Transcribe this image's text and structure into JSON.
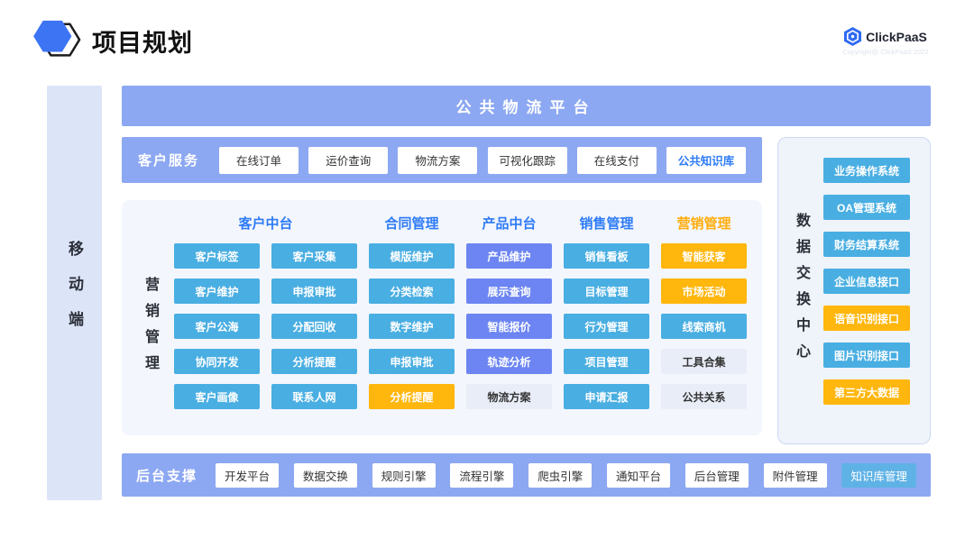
{
  "header": {
    "title": "项目规划",
    "brand": "ClickPaaS",
    "copyright": "Copyright@ ClickPaaS 2022"
  },
  "colors": {
    "bar_blue": "#8da8f2",
    "button_sky": "#49aee2",
    "button_indigo": "#6c85f2",
    "button_amber": "#ffb60d",
    "button_light": "#e9edf8",
    "button_cyan": "#5fb2e5",
    "header_blue_text": "#2e7bf6",
    "header_amber_text": "#ffad0d",
    "panel_bg": "#f3f6fc",
    "right_panel_bg": "#eff3fa",
    "sidebar_bg": "#dce5f8",
    "brand_blue": "#3d74f4"
  },
  "sidebar": {
    "label": "移动端"
  },
  "top_banner": {
    "label": "公共物流平台"
  },
  "customer_service": {
    "label": "客户服务",
    "buttons": [
      {
        "label": "在线订单",
        "variant": "white"
      },
      {
        "label": "运价查询",
        "variant": "white"
      },
      {
        "label": "物流方案",
        "variant": "white"
      },
      {
        "label": "可视化跟踪",
        "variant": "white"
      },
      {
        "label": "在线支付",
        "variant": "white"
      },
      {
        "label": "公共知识库",
        "variant": "white-blue"
      }
    ]
  },
  "main_grid": {
    "side_label": "营销管理",
    "headers": [
      {
        "label": "客户中台",
        "variant": "head-blue",
        "span": 2
      },
      {
        "label": "合同管理",
        "variant": "head-blue"
      },
      {
        "label": "产品中台",
        "variant": "head-blue"
      },
      {
        "label": "销售管理",
        "variant": "head-blue"
      },
      {
        "label": "营销管理",
        "variant": "head-amber"
      }
    ],
    "cells": [
      {
        "label": "客户标签",
        "variant": "sky"
      },
      {
        "label": "客户采集",
        "variant": "sky"
      },
      {
        "label": "模版维护",
        "variant": "sky"
      },
      {
        "label": "产品维护",
        "variant": "indigo"
      },
      {
        "label": "销售看板",
        "variant": "sky"
      },
      {
        "label": "智能获客",
        "variant": "amber"
      },
      {
        "label": "客户维护",
        "variant": "sky"
      },
      {
        "label": "申报审批",
        "variant": "sky"
      },
      {
        "label": "分类检索",
        "variant": "sky"
      },
      {
        "label": "展示查询",
        "variant": "indigo"
      },
      {
        "label": "目标管理",
        "variant": "sky"
      },
      {
        "label": "市场活动",
        "variant": "amber"
      },
      {
        "label": "客户公海",
        "variant": "sky"
      },
      {
        "label": "分配回收",
        "variant": "sky"
      },
      {
        "label": "数字维护",
        "variant": "sky"
      },
      {
        "label": "智能报价",
        "variant": "indigo"
      },
      {
        "label": "行为管理",
        "variant": "sky"
      },
      {
        "label": "线索商机",
        "variant": "sky"
      },
      {
        "label": "协同开发",
        "variant": "sky"
      },
      {
        "label": "分析提醒",
        "variant": "sky"
      },
      {
        "label": "申报审批",
        "variant": "sky"
      },
      {
        "label": "轨迹分析",
        "variant": "indigo"
      },
      {
        "label": "项目管理",
        "variant": "sky"
      },
      {
        "label": "工具合集",
        "variant": "light"
      },
      {
        "label": "客户画像",
        "variant": "sky"
      },
      {
        "label": "联系人网",
        "variant": "sky"
      },
      {
        "label": "分析提醒",
        "variant": "amber"
      },
      {
        "label": "物流方案",
        "variant": "light"
      },
      {
        "label": "申请汇报",
        "variant": "sky"
      },
      {
        "label": "公共关系",
        "variant": "light"
      }
    ]
  },
  "data_exchange": {
    "label": "数据交换中心",
    "buttons": [
      {
        "label": "业务操作系统",
        "variant": "sky"
      },
      {
        "label": "OA管理系统",
        "variant": "sky"
      },
      {
        "label": "财务结算系统",
        "variant": "sky"
      },
      {
        "label": "企业信息接口",
        "variant": "sky"
      },
      {
        "label": "语音识别接口",
        "variant": "amber"
      },
      {
        "label": "图片识别接口",
        "variant": "sky"
      },
      {
        "label": "第三方大数据",
        "variant": "amber"
      }
    ]
  },
  "backend_support": {
    "label": "后台支撑",
    "buttons": [
      {
        "label": "开发平台",
        "variant": "white"
      },
      {
        "label": "数据交换",
        "variant": "white"
      },
      {
        "label": "规则引擎",
        "variant": "white"
      },
      {
        "label": "流程引擎",
        "variant": "white"
      },
      {
        "label": "爬虫引擎",
        "variant": "white"
      },
      {
        "label": "通知平台",
        "variant": "white"
      },
      {
        "label": "后台管理",
        "variant": "white"
      },
      {
        "label": "附件管理",
        "variant": "white"
      },
      {
        "label": "知识库管理",
        "variant": "cyan"
      }
    ]
  }
}
